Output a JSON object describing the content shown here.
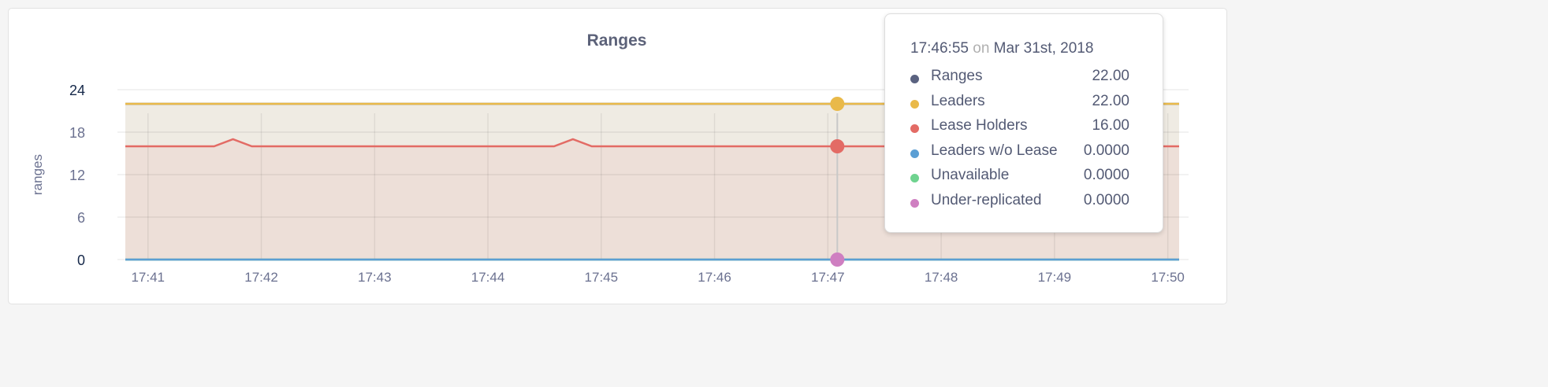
{
  "chart_data": {
    "type": "area",
    "title": "Ranges",
    "ylabel": "ranges",
    "xlabel": "",
    "ylim": [
      0,
      24
    ],
    "yticks": [
      "0",
      "6",
      "12",
      "18",
      "24"
    ],
    "xlim": [
      "17:40:48",
      "17:50:06"
    ],
    "xticks": [
      "17:41",
      "17:42",
      "17:43",
      "17:44",
      "17:45",
      "17:46",
      "17:47",
      "17:48",
      "17:49",
      "17:50"
    ],
    "grid": true,
    "series": [
      {
        "name": "Ranges",
        "color": "#5a6280",
        "points": [
          [
            "17:40:48",
            22
          ],
          [
            "17:50:06",
            22
          ]
        ]
      },
      {
        "name": "Leaders",
        "color": "#e9b949",
        "points": [
          [
            "17:40:48",
            22
          ],
          [
            "17:50:06",
            22
          ]
        ]
      },
      {
        "name": "Lease Holders",
        "color": "#e36b65",
        "points": [
          [
            "17:40:48",
            16
          ],
          [
            "17:41:35",
            16
          ],
          [
            "17:41:45",
            17
          ],
          [
            "17:41:55",
            16
          ],
          [
            "17:44:35",
            16
          ],
          [
            "17:44:45",
            17
          ],
          [
            "17:44:55",
            16
          ],
          [
            "17:50:06",
            16
          ]
        ]
      },
      {
        "name": "Leaders w/o Lease",
        "color": "#5b9fd4",
        "points": [
          [
            "17:40:48",
            0
          ],
          [
            "17:50:06",
            0
          ]
        ]
      },
      {
        "name": "Unavailable",
        "color": "#6fd38f",
        "points": [
          [
            "17:40:48",
            0
          ],
          [
            "17:50:06",
            0
          ]
        ]
      },
      {
        "name": "Under-replicated",
        "color": "#cf7fc1",
        "points": [
          [
            "17:40:48",
            0
          ],
          [
            "17:50:06",
            0
          ]
        ]
      }
    ],
    "hover_time": "17:47:05"
  },
  "tooltip": {
    "time": "17:46:55",
    "on": "on",
    "date": "Mar 31st, 2018",
    "rows": [
      {
        "label": "Ranges",
        "value": "22.00",
        "color": "#5a6280"
      },
      {
        "label": "Leaders",
        "value": "22.00",
        "color": "#e9b949"
      },
      {
        "label": "Lease Holders",
        "value": "16.00",
        "color": "#e36b65"
      },
      {
        "label": "Leaders w/o Lease",
        "value": "0.0000",
        "color": "#5b9fd4"
      },
      {
        "label": "Unavailable",
        "value": "0.0000",
        "color": "#6fd38f"
      },
      {
        "label": "Under-replicated",
        "value": "0.0000",
        "color": "#cf7fc1"
      }
    ]
  }
}
